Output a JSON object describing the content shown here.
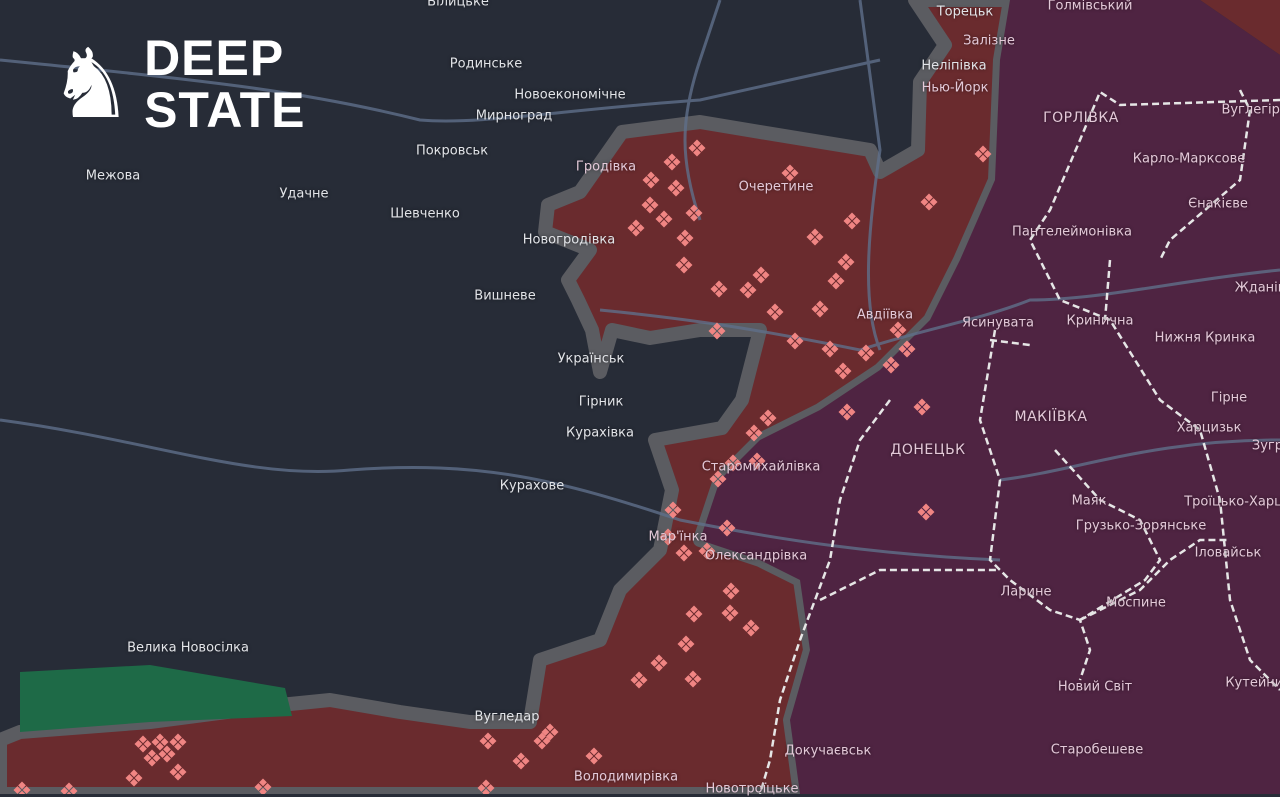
{
  "logo": {
    "line1": "DEEP",
    "line2": "STATE",
    "icon": "knight-chess-icon"
  },
  "colors": {
    "background": "#272c37",
    "occupied": "#6a2b2e",
    "occupied_before_2022": "#4f2442",
    "liberated": "#1e6a47",
    "contested": "#5b5c61",
    "marker": "#f08583",
    "railway": "#e6e6e6",
    "road": "#5f6f8a"
  },
  "labels": [
    {
      "text": "Білицьке",
      "zone": "free"
    },
    {
      "text": "Родинське",
      "zone": "free"
    },
    {
      "text": "Новоекономічне",
      "zone": "free"
    },
    {
      "text": "Мирноград",
      "zone": "free"
    },
    {
      "text": "Покровськ",
      "zone": "free"
    },
    {
      "text": "Межова",
      "zone": "free"
    },
    {
      "text": "Удачне",
      "zone": "free"
    },
    {
      "text": "Шевченко",
      "zone": "free"
    },
    {
      "text": "Вишневе",
      "zone": "free"
    },
    {
      "text": "Гродівка",
      "zone": "occ"
    },
    {
      "text": "Новогродівка",
      "zone": "free"
    },
    {
      "text": "Очеретине",
      "zone": "occ"
    },
    {
      "text": "Торецьк",
      "zone": "free"
    },
    {
      "text": "Залізне",
      "zone": "occ"
    },
    {
      "text": "Неліпівка",
      "zone": "free"
    },
    {
      "text": "Нью-Йорк",
      "zone": "occ"
    },
    {
      "text": "Голмівський",
      "zone": "occ"
    },
    {
      "text": "ГОРЛІВКА",
      "zone": "occ"
    },
    {
      "text": "Карло-Марксове",
      "zone": "occ"
    },
    {
      "text": "Вуглегірськ",
      "zone": "occ"
    },
    {
      "text": "Єнакієве",
      "zone": "occ"
    },
    {
      "text": "Пантелеймонівка",
      "zone": "occ"
    },
    {
      "text": "Жданівка",
      "zone": "occ"
    },
    {
      "text": "Кринична",
      "zone": "occ"
    },
    {
      "text": "Нижня Кринка",
      "zone": "occ"
    },
    {
      "text": "Авдіївка",
      "zone": "occ"
    },
    {
      "text": "Ясинувата",
      "zone": "occ"
    },
    {
      "text": "Українськ",
      "zone": "free"
    },
    {
      "text": "Гірник",
      "zone": "free"
    },
    {
      "text": "Курахівка",
      "zone": "free"
    },
    {
      "text": "Курахове",
      "zone": "free"
    },
    {
      "text": "Старомихайлівка",
      "zone": "occ"
    },
    {
      "text": "ДОНЕЦЬК",
      "zone": "occ"
    },
    {
      "text": "МАКІЇВКА",
      "zone": "occ"
    },
    {
      "text": "Гірне",
      "zone": "occ"
    },
    {
      "text": "Харцизьк",
      "zone": "occ"
    },
    {
      "text": "Зугрес",
      "zone": "occ"
    },
    {
      "text": "Троїцько-Харцизьк",
      "zone": "occ"
    },
    {
      "text": "Маяк",
      "zone": "occ"
    },
    {
      "text": "Грузько-Зорянське",
      "zone": "occ"
    },
    {
      "text": "Іловайськ",
      "zone": "occ"
    },
    {
      "text": "Мар'їнка",
      "zone": "occ"
    },
    {
      "text": "Олександрівка",
      "zone": "occ"
    },
    {
      "text": "Ларине",
      "zone": "occ"
    },
    {
      "text": "Моспине",
      "zone": "occ"
    },
    {
      "text": "Новий Світ",
      "zone": "occ"
    },
    {
      "text": "Кутейникове",
      "zone": "occ"
    },
    {
      "text": "Велика Новосілка",
      "zone": "free"
    },
    {
      "text": "Вугледар",
      "zone": "free"
    },
    {
      "text": "Докучаєвськ",
      "zone": "occ"
    },
    {
      "text": "Старобешеве",
      "zone": "occ"
    },
    {
      "text": "Володимирівка",
      "zone": "occ"
    },
    {
      "text": "Новотроїцьке",
      "zone": "occ"
    }
  ]
}
